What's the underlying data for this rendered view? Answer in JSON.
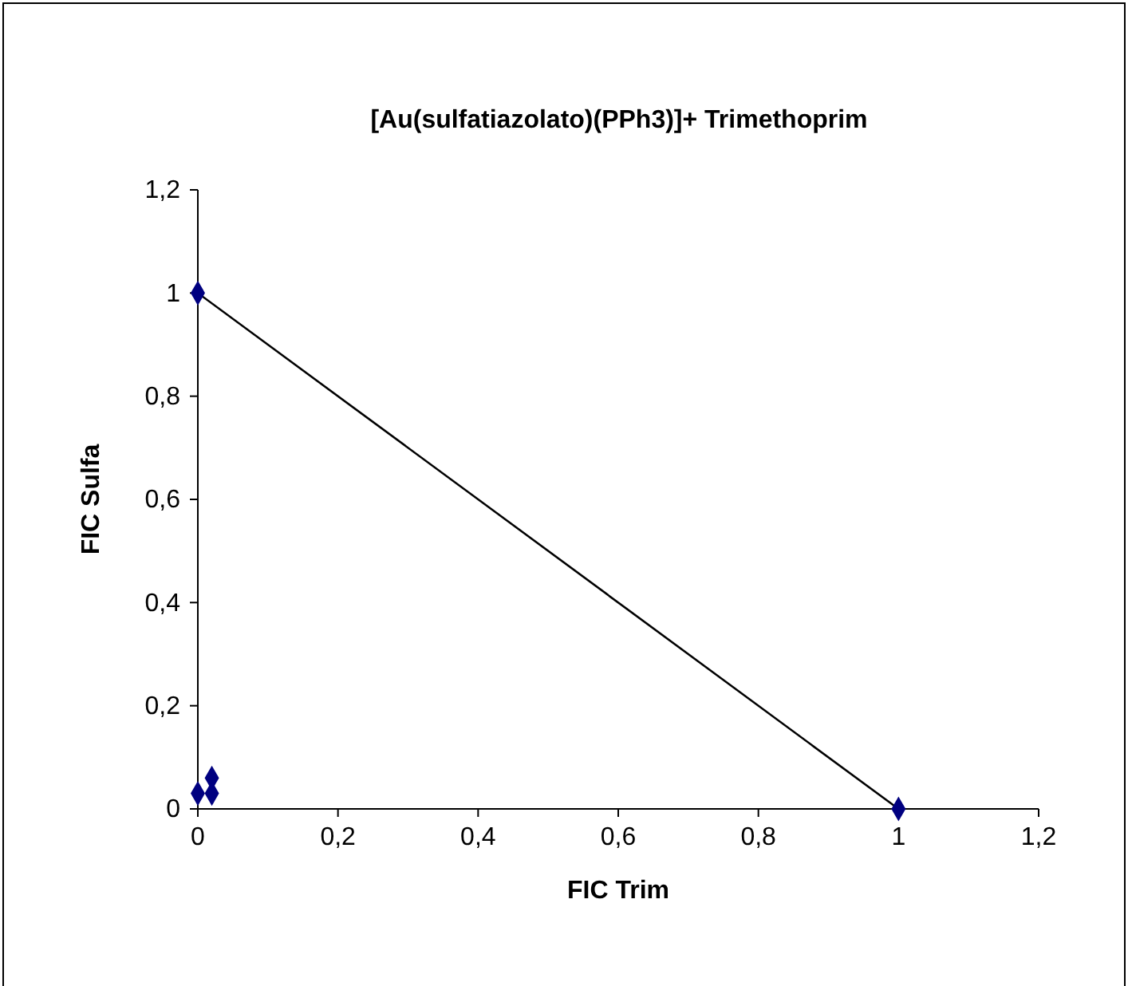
{
  "chart_data": {
    "type": "scatter",
    "title": "[Au(sulfatiazolato)(PPh3)]+ Trimethoprim",
    "xlabel": "FIC Trim",
    "ylabel": "FIC Sulfa",
    "series": [
      {
        "type": "line",
        "color": "#000000",
        "x": [
          0,
          1
        ],
        "values": [
          1,
          0
        ],
        "marker": "none"
      },
      {
        "type": "scatter",
        "color": "#000080",
        "x": [
          0,
          1,
          0,
          0.02,
          0.02
        ],
        "values": [
          1,
          0,
          0.03,
          0.03,
          0.06
        ],
        "marker": "diamond"
      }
    ],
    "xlim": [
      0,
      1.2
    ],
    "xticks": [
      0,
      {
        "value": 0.2,
        "label": "0,2"
      },
      {
        "value": 0.4,
        "label": "0,4"
      },
      {
        "value": 0.6,
        "label": "0,6"
      },
      {
        "value": 0.8,
        "label": "0,8"
      },
      1,
      {
        "value": 1.2,
        "label": "1,2"
      }
    ],
    "ylim": [
      0,
      1.2
    ],
    "yticks": [
      0,
      {
        "value": 0.2,
        "label": "0,2"
      },
      {
        "value": 0.4,
        "label": "0,4"
      },
      {
        "value": 0.6,
        "label": "0,6"
      },
      {
        "value": 0.8,
        "label": "0,8"
      },
      1,
      {
        "value": 1.2,
        "label": "1,2"
      }
    ],
    "grid": false
  }
}
